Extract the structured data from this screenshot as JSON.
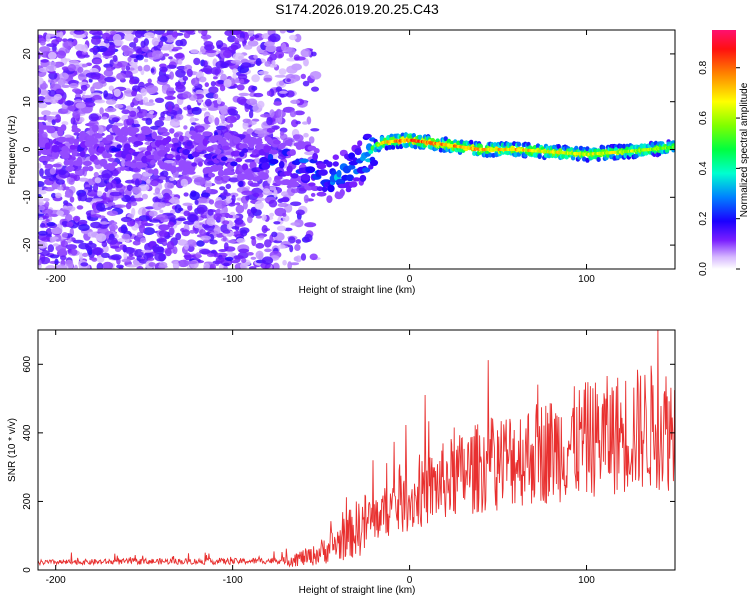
{
  "title": "S174.2026.019.20.25.C43",
  "chart_data": [
    {
      "type": "heatmap",
      "title": "S174.2026.019.20.25.C43",
      "xlabel": "Height of straight line (km)",
      "ylabel": "Frequency (Hz)",
      "xlim": [
        -210,
        150
      ],
      "ylim": [
        -25,
        25
      ],
      "xticks": [
        -200,
        -100,
        0,
        100
      ],
      "yticks": [
        -20,
        -10,
        0,
        10,
        20
      ],
      "xtick_labels": [
        "-200",
        "-100",
        "0",
        "100"
      ],
      "ytick_labels": [
        "-20",
        "-10",
        "0",
        "10",
        "20"
      ],
      "colorbar": {
        "label": "Normalized spectral amplitude",
        "range": [
          0,
          0.95
        ],
        "ticks": [
          0.0,
          0.2,
          0.4,
          0.6,
          0.8
        ],
        "tick_labels": [
          "0.0",
          "0.2",
          "0.4",
          "0.6",
          "0.8"
        ]
      },
      "ridge": {
        "x": [
          -210,
          -150,
          -100,
          -60,
          -45,
          -30,
          -22,
          -15,
          0,
          20,
          40,
          60,
          80,
          100,
          120,
          150
        ],
        "y": [
          0.5,
          0,
          -1.5,
          -3,
          -6,
          -4,
          0,
          1.5,
          2,
          1,
          0,
          0,
          -0.5,
          -1,
          -0.5,
          0.5
        ],
        "amplitude": [
          0.12,
          0.15,
          0.18,
          0.25,
          0.3,
          0.3,
          0.5,
          0.75,
          0.9,
          0.85,
          0.8,
          0.8,
          0.75,
          0.7,
          0.7,
          0.6
        ]
      }
    },
    {
      "type": "line",
      "xlabel": "Height of straight line (km)",
      "ylabel": "SNR (10 * v/v)",
      "xlim": [
        -210,
        150
      ],
      "ylim": [
        0,
        700
      ],
      "xticks": [
        -200,
        -100,
        0,
        100
      ],
      "yticks": [
        0,
        200,
        400,
        600
      ],
      "xtick_labels": [
        "-200",
        "-100",
        "0",
        "100"
      ],
      "ytick_labels": [
        "0",
        "200",
        "400",
        "600"
      ],
      "series": [
        {
          "name": "SNR",
          "color": "#e8302f",
          "x": [
            -210,
            -150,
            -100,
            -70,
            -55,
            -40,
            -30,
            -20,
            -10,
            0,
            20,
            40,
            60,
            80,
            100,
            120,
            140,
            150
          ],
          "y": [
            22,
            25,
            25,
            28,
            40,
            80,
            120,
            150,
            180,
            200,
            260,
            300,
            330,
            350,
            380,
            400,
            420,
            410
          ]
        }
      ]
    }
  ]
}
